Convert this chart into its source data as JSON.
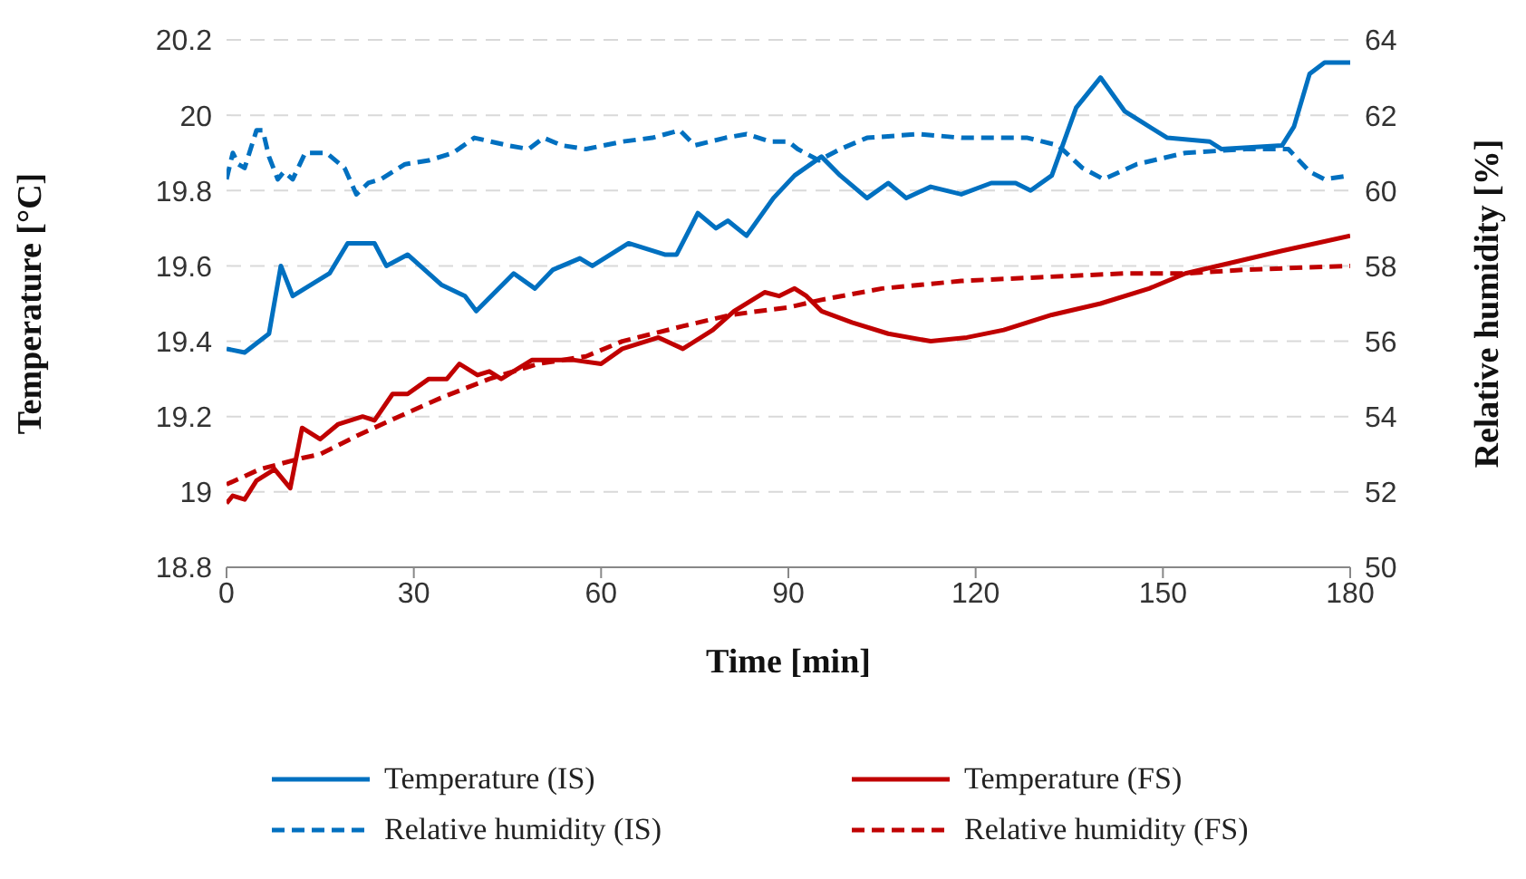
{
  "chart_data": {
    "type": "line",
    "xlabel": "Time [min]",
    "ylabel": "Temperature  [°C]",
    "y2label": "Relative humidity  [%]",
    "xlim": [
      0,
      180
    ],
    "xticks": [
      0,
      30,
      60,
      90,
      120,
      150,
      180
    ],
    "ylim": [
      18.8,
      20.2
    ],
    "yticks": [
      18.8,
      19,
      19.2,
      19.4,
      19.6,
      19.8,
      20,
      20.2
    ],
    "y2lim": [
      50,
      64
    ],
    "y2ticks": [
      50,
      52,
      54,
      56,
      58,
      60,
      62,
      64
    ],
    "grid": "y",
    "legend": "bottom",
    "series": [
      {
        "name": "Temperature (IS)",
        "color": "#0070c0",
        "line_style": "solid",
        "x": [
          0,
          2.9,
          6.8,
          8.7,
          10.6,
          16.5,
          19.4,
          23.7,
          25.6,
          29,
          34.4,
          38.2,
          40,
          46,
          49.4,
          52.3,
          56.6,
          58.6,
          64.4,
          70.2,
          72.1,
          75.5,
          78.4,
          80.3,
          83.3,
          87.6,
          91,
          95.3,
          98.3,
          102.6,
          106,
          108.9,
          112.8,
          117.7,
          122.5,
          126.4,
          128.8,
          132.2,
          136.1,
          140,
          143.9,
          146.8,
          150.7,
          157.5,
          159.4,
          169.1,
          171,
          173.5,
          175.9,
          180
        ],
        "values": [
          19.38,
          19.37,
          19.42,
          19.6,
          19.52,
          19.58,
          19.66,
          19.66,
          19.6,
          19.63,
          19.55,
          19.52,
          19.48,
          19.58,
          19.54,
          19.59,
          19.62,
          19.6,
          19.66,
          19.63,
          19.63,
          19.74,
          19.7,
          19.72,
          19.68,
          19.78,
          19.84,
          19.89,
          19.84,
          19.78,
          19.82,
          19.78,
          19.81,
          19.79,
          19.82,
          19.82,
          19.8,
          19.84,
          20.02,
          20.1,
          20.01,
          19.98,
          19.94,
          19.93,
          19.91,
          19.92,
          19.97,
          20.11,
          20.14,
          20.14
        ]
      },
      {
        "name": "Temperature (FS)",
        "color": "#c00000",
        "line_style": "solid",
        "x": [
          0,
          1,
          2.9,
          4.8,
          7.7,
          10.2,
          12.1,
          15,
          17.9,
          21.8,
          23.7,
          26.6,
          29,
          32.4,
          35.3,
          37.3,
          40.2,
          42.1,
          44,
          48.9,
          55.7,
          60,
          63.4,
          69.2,
          73.1,
          77.9,
          81.3,
          86.2,
          88.5,
          91,
          92.9,
          95.3,
          100.2,
          106,
          112.8,
          118.6,
          124.5,
          132.2,
          140,
          147.8,
          153.6,
          161.4,
          169.1,
          180
        ],
        "values": [
          18.97,
          18.99,
          18.98,
          19.03,
          19.06,
          19.01,
          19.17,
          19.14,
          19.18,
          19.2,
          19.19,
          19.26,
          19.26,
          19.3,
          19.3,
          19.34,
          19.31,
          19.32,
          19.3,
          19.35,
          19.35,
          19.34,
          19.38,
          19.41,
          19.38,
          19.43,
          19.48,
          19.53,
          19.52,
          19.54,
          19.52,
          19.48,
          19.45,
          19.42,
          19.4,
          19.41,
          19.43,
          19.47,
          19.5,
          19.54,
          19.58,
          19.61,
          19.64,
          19.68
        ]
      },
      {
        "name": "Relative humidity (IS)",
        "color": "#0070c0",
        "line_style": "dashed",
        "axis": "y2",
        "x": [
          0,
          1,
          1.9,
          2.9,
          4.8,
          5.8,
          6.8,
          8.2,
          9.2,
          10.6,
          12.6,
          16,
          18.9,
          20.8,
          22.7,
          24.7,
          28.6,
          32.4,
          36.3,
          39.7,
          45,
          48.4,
          50.8,
          53.7,
          57.6,
          63.4,
          68.2,
          72.6,
          75,
          79.9,
          83.3,
          87.1,
          90,
          91.5,
          94.9,
          98.3,
          102.6,
          110.9,
          117.7,
          128.3,
          133.2,
          137.1,
          140.5,
          145.8,
          153.6,
          163.3,
          170.1,
          173.5,
          175.9,
          180
        ],
        "values": [
          60.3,
          61,
          60.7,
          60.6,
          61.6,
          61.6,
          60.9,
          60.3,
          60.5,
          60.3,
          61,
          61,
          60.6,
          59.9,
          60.2,
          60.3,
          60.7,
          60.8,
          61,
          61.4,
          61.2,
          61.1,
          61.4,
          61.2,
          61.1,
          61.3,
          61.4,
          61.6,
          61.2,
          61.4,
          61.5,
          61.3,
          61.3,
          61.1,
          60.8,
          61.1,
          61.4,
          61.5,
          61.4,
          61.4,
          61.2,
          60.6,
          60.3,
          60.7,
          61,
          61.1,
          61.1,
          60.5,
          60.3,
          60.4
        ]
      },
      {
        "name": "Relative humidity (FS)",
        "color": "#c00000",
        "line_style": "dashed",
        "axis": "y2",
        "x": [
          0,
          5.3,
          12.1,
          15,
          21,
          27.6,
          34.4,
          42.1,
          49.9,
          57.6,
          63.4,
          73.1,
          80.8,
          90,
          95.3,
          105,
          117.7,
          130.3,
          143.9,
          153.6,
          163.3,
          180
        ],
        "values": [
          52.2,
          52.6,
          52.9,
          53,
          53.5,
          54,
          54.5,
          55,
          55.4,
          55.6,
          56,
          56.4,
          56.7,
          56.9,
          57.1,
          57.4,
          57.6,
          57.7,
          57.8,
          57.8,
          57.9,
          58
        ]
      }
    ]
  }
}
